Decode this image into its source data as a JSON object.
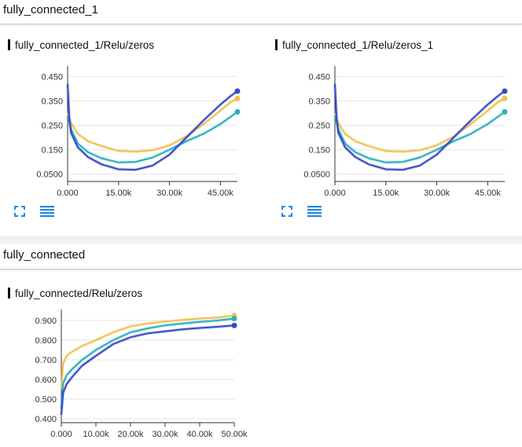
{
  "sections": [
    {
      "title": "fully_connected_1",
      "charts": [
        {
          "title": "fully_connected_1/Relu/zeros"
        },
        {
          "title": "fully_connected_1/Relu/zeros_1"
        }
      ]
    },
    {
      "title": "fully_connected",
      "charts": [
        {
          "title": "fully_connected/Relu/zeros"
        }
      ]
    }
  ],
  "colors": {
    "run1": "#f2c14e",
    "run2": "#2ab0c0",
    "run3": "#3949c4"
  },
  "icons": {
    "expand": "fullscreen-icon",
    "data": "list-icon"
  },
  "chart_data": [
    {
      "type": "line",
      "title": "fully_connected_1/Relu/zeros",
      "xlim": [
        0,
        50000
      ],
      "ylim": [
        0.02,
        0.48
      ],
      "x_ticks": [
        0,
        15000,
        30000,
        45000
      ],
      "x_tick_labels": [
        "0.000",
        "15.00k",
        "30.00k",
        "45.00k"
      ],
      "y_ticks": [
        0.05,
        0.15,
        0.25,
        0.35,
        0.45
      ],
      "y_tick_labels": [
        "0.0500",
        "0.150",
        "0.250",
        "0.350",
        "0.450"
      ],
      "series": [
        {
          "color": "#f2c14e",
          "x": [
            0,
            1000,
            3000,
            6000,
            10000,
            15000,
            20000,
            25000,
            30000,
            35000,
            40000,
            45000,
            48000,
            50000
          ],
          "y": [
            0.3,
            0.26,
            0.215,
            0.185,
            0.165,
            0.145,
            0.142,
            0.148,
            0.168,
            0.205,
            0.255,
            0.31,
            0.345,
            0.36
          ]
        },
        {
          "color": "#2ab0c0",
          "x": [
            0,
            1000,
            3000,
            6000,
            10000,
            15000,
            20000,
            25000,
            30000,
            35000,
            40000,
            45000,
            48000,
            50000
          ],
          "y": [
            0.29,
            0.235,
            0.175,
            0.14,
            0.115,
            0.098,
            0.1,
            0.118,
            0.15,
            0.185,
            0.215,
            0.255,
            0.285,
            0.305
          ]
        },
        {
          "color": "#3949c4",
          "x": [
            0,
            500,
            1000,
            3000,
            6000,
            10000,
            15000,
            20000,
            25000,
            30000,
            35000,
            40000,
            45000,
            48000,
            50000
          ],
          "y": [
            0.42,
            0.28,
            0.22,
            0.16,
            0.12,
            0.09,
            0.07,
            0.068,
            0.085,
            0.13,
            0.2,
            0.27,
            0.335,
            0.37,
            0.39
          ]
        }
      ]
    },
    {
      "type": "line",
      "title": "fully_connected_1/Relu/zeros_1",
      "xlim": [
        0,
        50000
      ],
      "ylim": [
        0.02,
        0.48
      ],
      "x_ticks": [
        0,
        15000,
        30000,
        45000
      ],
      "x_tick_labels": [
        "0.000",
        "15.00k",
        "30.00k",
        "45.00k"
      ],
      "y_ticks": [
        0.05,
        0.15,
        0.25,
        0.35,
        0.45
      ],
      "y_tick_labels": [
        "0.0500",
        "0.150",
        "0.250",
        "0.350",
        "0.450"
      ],
      "series": [
        {
          "color": "#f2c14e",
          "x": [
            0,
            1000,
            3000,
            6000,
            10000,
            15000,
            20000,
            25000,
            30000,
            35000,
            40000,
            45000,
            48000,
            50000
          ],
          "y": [
            0.3,
            0.26,
            0.215,
            0.185,
            0.165,
            0.145,
            0.142,
            0.148,
            0.168,
            0.205,
            0.255,
            0.31,
            0.345,
            0.36
          ]
        },
        {
          "color": "#2ab0c0",
          "x": [
            0,
            1000,
            3000,
            6000,
            10000,
            15000,
            20000,
            25000,
            30000,
            35000,
            40000,
            45000,
            48000,
            50000
          ],
          "y": [
            0.29,
            0.235,
            0.175,
            0.14,
            0.115,
            0.098,
            0.1,
            0.118,
            0.15,
            0.185,
            0.215,
            0.255,
            0.285,
            0.305
          ]
        },
        {
          "color": "#3949c4",
          "x": [
            0,
            500,
            1000,
            3000,
            6000,
            10000,
            15000,
            20000,
            25000,
            30000,
            35000,
            40000,
            45000,
            48000,
            50000
          ],
          "y": [
            0.42,
            0.28,
            0.22,
            0.16,
            0.12,
            0.09,
            0.07,
            0.068,
            0.085,
            0.13,
            0.2,
            0.27,
            0.335,
            0.37,
            0.39
          ]
        }
      ]
    },
    {
      "type": "line",
      "title": "fully_connected/Relu/zeros",
      "xlim": [
        0,
        50000
      ],
      "ylim": [
        0.38,
        0.94
      ],
      "x_ticks": [
        0,
        10000,
        20000,
        30000,
        40000,
        50000
      ],
      "x_tick_labels": [
        "0.000",
        "10.00k",
        "20.00k",
        "30.00k",
        "40.00k",
        "50.00k"
      ],
      "y_ticks": [
        0.4,
        0.5,
        0.6,
        0.7,
        0.8,
        0.9
      ],
      "y_tick_labels": [
        "0.400",
        "0.500",
        "0.600",
        "0.700",
        "0.800",
        "0.900"
      ],
      "series": [
        {
          "color": "#f2c14e",
          "x": [
            0,
            500,
            1500,
            3000,
            6000,
            10000,
            15000,
            20000,
            25000,
            30000,
            35000,
            40000,
            45000,
            50000
          ],
          "y": [
            0.55,
            0.68,
            0.72,
            0.74,
            0.77,
            0.8,
            0.84,
            0.87,
            0.885,
            0.895,
            0.903,
            0.91,
            0.915,
            0.925
          ]
        },
        {
          "color": "#2ab0c0",
          "x": [
            0,
            500,
            1500,
            3000,
            6000,
            10000,
            15000,
            20000,
            25000,
            30000,
            35000,
            40000,
            45000,
            50000
          ],
          "y": [
            0.45,
            0.58,
            0.62,
            0.65,
            0.7,
            0.75,
            0.8,
            0.84,
            0.86,
            0.875,
            0.885,
            0.893,
            0.9,
            0.91
          ]
        },
        {
          "color": "#3949c4",
          "x": [
            0,
            500,
            1500,
            3000,
            6000,
            10000,
            15000,
            20000,
            25000,
            30000,
            35000,
            40000,
            45000,
            50000
          ],
          "y": [
            0.42,
            0.53,
            0.575,
            0.61,
            0.67,
            0.72,
            0.78,
            0.815,
            0.835,
            0.845,
            0.855,
            0.862,
            0.868,
            0.875
          ]
        }
      ]
    }
  ]
}
